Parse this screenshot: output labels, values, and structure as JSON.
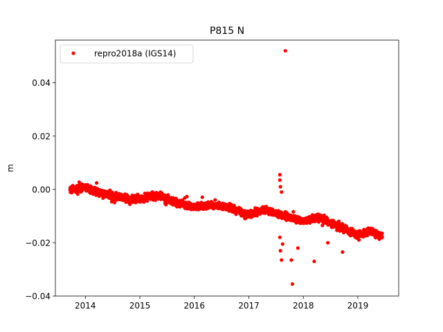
{
  "chart_data": {
    "type": "scatter",
    "title": "P815 N",
    "xlabel": "",
    "ylabel": "m",
    "xlim": [
      2013.45,
      2019.75
    ],
    "ylim": [
      -0.04,
      0.056
    ],
    "x_ticks": [
      2014,
      2015,
      2016,
      2017,
      2018,
      2019
    ],
    "x_tick_labels": [
      "2014",
      "2015",
      "2016",
      "2017",
      "2018",
      "2019"
    ],
    "y_ticks": [
      -0.04,
      -0.02,
      0.0,
      0.02,
      0.04
    ],
    "y_tick_labels": [
      "−0.04",
      "−0.02",
      "0.00",
      "0.02",
      "0.04"
    ],
    "grid": false,
    "legend": {
      "position": "upper-left",
      "entries": [
        "repro2018a (IGS14)"
      ]
    },
    "series": [
      {
        "name": "repro2018a (IGS14)",
        "color": "#ff0000",
        "marker": "circle",
        "trend_points": [
          [
            2013.72,
            0.0
          ],
          [
            2014.0,
            0.0007
          ],
          [
            2014.3,
            -0.0015
          ],
          [
            2014.6,
            -0.003
          ],
          [
            2015.0,
            -0.0035
          ],
          [
            2015.35,
            -0.002
          ],
          [
            2015.7,
            -0.005
          ],
          [
            2016.0,
            -0.0065
          ],
          [
            2016.3,
            -0.006
          ],
          [
            2016.6,
            -0.0065
          ],
          [
            2017.0,
            -0.0095
          ],
          [
            2017.3,
            -0.0075
          ],
          [
            2017.6,
            -0.0095
          ],
          [
            2018.0,
            -0.012
          ],
          [
            2018.3,
            -0.0105
          ],
          [
            2018.7,
            -0.0145
          ],
          [
            2019.0,
            -0.017
          ],
          [
            2019.2,
            -0.0155
          ],
          [
            2019.45,
            -0.0175
          ]
        ],
        "outliers": [
          [
            2017.67,
            0.052
          ],
          [
            2017.57,
            0.0055
          ],
          [
            2017.57,
            0.0035
          ],
          [
            2017.58,
            0.001
          ],
          [
            2017.6,
            -0.001
          ],
          [
            2017.58,
            -0.023
          ],
          [
            2017.6,
            -0.0265
          ],
          [
            2017.62,
            -0.0205
          ],
          [
            2017.78,
            -0.0265
          ],
          [
            2017.8,
            -0.0355
          ],
          [
            2017.9,
            -0.022
          ],
          [
            2018.2,
            -0.027
          ],
          [
            2018.45,
            -0.02
          ],
          [
            2018.72,
            -0.0235
          ],
          [
            2017.57,
            -0.018
          ],
          [
            2018.35,
            -0.0135
          ]
        ]
      }
    ]
  }
}
